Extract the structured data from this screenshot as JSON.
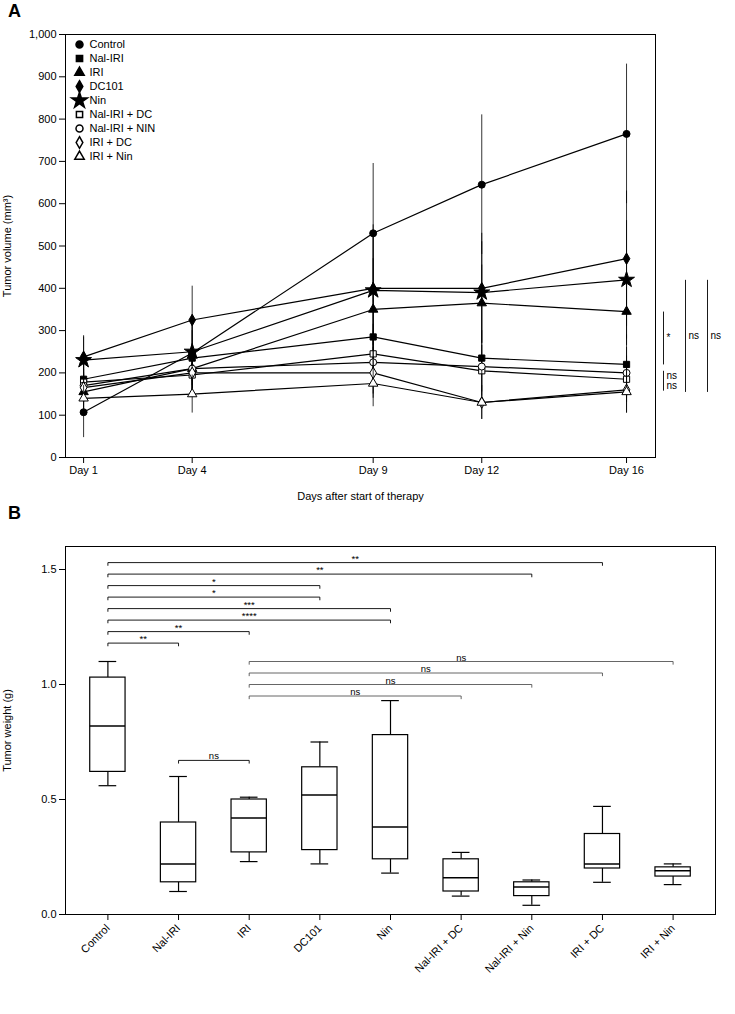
{
  "chart_data": [
    {
      "type": "line",
      "title": "A",
      "xlabel": "Days after start of therapy",
      "ylabel": "Tumor volume (mm³)",
      "x": [
        1,
        4,
        9,
        12,
        16
      ],
      "xlim": [
        0.5,
        16.8
      ],
      "xticks": [
        {
          "value": 1,
          "label": "Day 1"
        },
        {
          "value": 4,
          "label": "Day 4"
        },
        {
          "value": 9,
          "label": "Day 9"
        },
        {
          "value": 12,
          "label": "Day 12"
        },
        {
          "value": 16,
          "label": "Day 16"
        }
      ],
      "ylim": [
        0,
        1000
      ],
      "yticks": [
        0,
        100,
        200,
        300,
        400,
        500,
        600,
        700,
        800,
        900,
        {
          "value": 1000,
          "label": "1,000"
        }
      ],
      "legend": "upper left",
      "series": [
        {
          "name": "Control",
          "color": "black",
          "marker": "circle",
          "values": [
            107,
            247,
            530,
            645,
            765
          ],
          "errors": [
            60,
            90,
            165,
            165,
            165
          ]
        },
        {
          "name": "Nal-IRI",
          "color": "black",
          "marker": "square",
          "values": [
            185,
            235,
            285,
            235,
            220
          ],
          "errors": [
            55,
            65,
            80,
            65,
            70
          ]
        },
        {
          "name": "IRI",
          "color": "black",
          "marker": "triangle",
          "values": [
            155,
            210,
            350,
            365,
            345
          ],
          "errors": [
            40,
            55,
            120,
            90,
            80
          ]
        },
        {
          "name": "DC101",
          "color": "black",
          "marker": "diamond",
          "values": [
            238,
            325,
            400,
            400,
            470
          ],
          "errors": [
            50,
            80,
            150,
            130,
            160
          ]
        },
        {
          "name": "Nin",
          "color": "black",
          "marker": "star",
          "values": [
            230,
            250,
            395,
            390,
            420
          ],
          "errors": [
            55,
            70,
            130,
            120,
            140
          ]
        },
        {
          "name": "Nal-IRI + DC",
          "color": "black",
          "marker": "square-open",
          "values": [
            178,
            195,
            245,
            205,
            185
          ],
          "errors": [
            40,
            50,
            70,
            60,
            55
          ]
        },
        {
          "name": "Nal-IRI + NIN",
          "color": "black",
          "marker": "circle-open",
          "values": [
            170,
            210,
            225,
            215,
            200
          ],
          "errors": [
            38,
            55,
            75,
            60,
            60
          ]
        },
        {
          "name": "IRI + DC",
          "color": "black",
          "marker": "diamond-open",
          "values": [
            165,
            200,
            200,
            130,
            160
          ],
          "errors": [
            35,
            55,
            60,
            40,
            55
          ]
        },
        {
          "name": "IRI + Nin",
          "color": "black",
          "marker": "triangle-open",
          "values": [
            140,
            150,
            175,
            130,
            155
          ],
          "errors": [
            30,
            45,
            55,
            40,
            50
          ]
        }
      ],
      "annotations": [
        {
          "y1": 220,
          "y2": 345,
          "labels": [
            {
              "text": "*",
              "y": 282
            }
          ]
        },
        {
          "y1": 158,
          "y2": 205,
          "labels": [
            {
              "text": "ns",
              "y": 193
            },
            {
              "text": "ns",
              "y": 170
            }
          ]
        },
        {
          "y1": 155,
          "y2": 420,
          "labels": [
            {
              "text": "ns",
              "y": 287
            }
          ]
        },
        {
          "y1": 155,
          "y2": 420,
          "labels": [
            {
              "text": "ns",
              "y": 287
            }
          ]
        }
      ]
    },
    {
      "type": "box",
      "title": "B",
      "ylabel": "Tumor weight (g)",
      "color": "black",
      "categories": [
        "Control",
        "Nal-IRI",
        "IRI",
        "DC101",
        "Nin",
        "Nal-IRI + DC",
        "Nal-IRI + Nin",
        "IRI + DC",
        "IRI + Nin"
      ],
      "boxes": [
        {
          "q1": 0.62,
          "median": 0.82,
          "q3": 1.03,
          "whislo": 0.56,
          "whishi": 1.1
        },
        {
          "q1": 0.14,
          "median": 0.22,
          "q3": 0.4,
          "whislo": 0.1,
          "whishi": 0.6
        },
        {
          "q1": 0.27,
          "median": 0.42,
          "q3": 0.5,
          "whislo": 0.23,
          "whishi": 0.51
        },
        {
          "q1": 0.28,
          "median": 0.52,
          "q3": 0.64,
          "whislo": 0.22,
          "whishi": 0.75
        },
        {
          "q1": 0.24,
          "median": 0.38,
          "q3": 0.78,
          "whislo": 0.18,
          "whishi": 0.93
        },
        {
          "q1": 0.1,
          "median": 0.16,
          "q3": 0.24,
          "whislo": 0.08,
          "whishi": 0.27
        },
        {
          "q1": 0.08,
          "median": 0.12,
          "q3": 0.14,
          "whislo": 0.04,
          "whishi": 0.15
        },
        {
          "q1": 0.2,
          "median": 0.22,
          "q3": 0.35,
          "whislo": 0.14,
          "whishi": 0.47
        },
        {
          "q1": 0.165,
          "median": 0.19,
          "q3": 0.205,
          "whislo": 0.13,
          "whishi": 0.22
        }
      ],
      "ylim": [
        0.0,
        1.6
      ],
      "yticks": [
        {
          "value": 0,
          "label": "0.0"
        },
        0.5,
        {
          "value": 1,
          "label": "1.0"
        },
        1.5
      ],
      "annotations": [
        {
          "from": "Control",
          "to": "Nal-IRI",
          "y": 1.18,
          "text": "**",
          "color": "black"
        },
        {
          "from": "Control",
          "to": "IRI",
          "y": 1.23,
          "text": "**",
          "color": "black"
        },
        {
          "from": "Control",
          "to": "Nin",
          "y": 1.28,
          "text": "****",
          "color": "black"
        },
        {
          "from": "Control",
          "to": "Nin",
          "y": 1.33,
          "text": "***",
          "color": "black"
        },
        {
          "from": "Control",
          "to": "DC101",
          "y": 1.38,
          "text": "*",
          "color": "black"
        },
        {
          "from": "Control",
          "to": "DC101",
          "y": 1.43,
          "text": "*",
          "color": "black"
        },
        {
          "from": "Control",
          "to": "Nal-IRI + Nin",
          "y": 1.48,
          "text": "**",
          "color": "black"
        },
        {
          "from": "Control",
          "to": "IRI + DC",
          "y": 1.53,
          "text": "**",
          "color": "black"
        },
        {
          "from": "Nal-IRI",
          "to": "IRI",
          "y": 0.67,
          "text": "ns",
          "color": "black"
        },
        {
          "from": "IRI",
          "to": "Nal-IRI + DC",
          "y": 0.95,
          "text": "ns",
          "color": "#555555"
        },
        {
          "from": "IRI",
          "to": "Nal-IRI + Nin",
          "y": 1.0,
          "text": "ns",
          "color": "#555555"
        },
        {
          "from": "IRI",
          "to": "IRI + DC",
          "y": 1.05,
          "text": "ns",
          "color": "#555555"
        },
        {
          "from": "IRI",
          "to": "IRI + Nin",
          "y": 1.1,
          "text": "ns",
          "color": "#555555"
        }
      ]
    }
  ]
}
